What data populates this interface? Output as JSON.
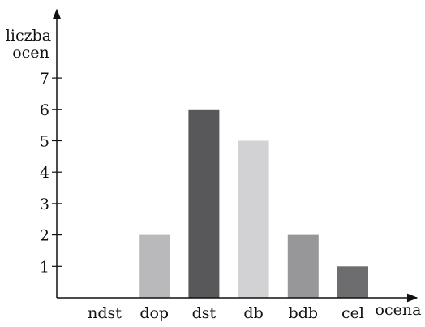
{
  "chart_data": {
    "type": "bar",
    "categories": [
      "ndst",
      "dop",
      "dst",
      "db",
      "bdb",
      "cel"
    ],
    "values": [
      0,
      2,
      6,
      5,
      2,
      1
    ],
    "colors": [
      "#b9b9bb",
      "#b9b9bb",
      "#58585a",
      "#d2d2d4",
      "#97979a",
      "#6d6d70"
    ],
    "ylabel_line1": "liczba",
    "ylabel_line2": "ocen",
    "xlabel": "ocena",
    "yticks": [
      1,
      2,
      3,
      4,
      5,
      6,
      7
    ],
    "ylim": [
      0,
      7
    ],
    "grid": false,
    "legend": "none"
  }
}
